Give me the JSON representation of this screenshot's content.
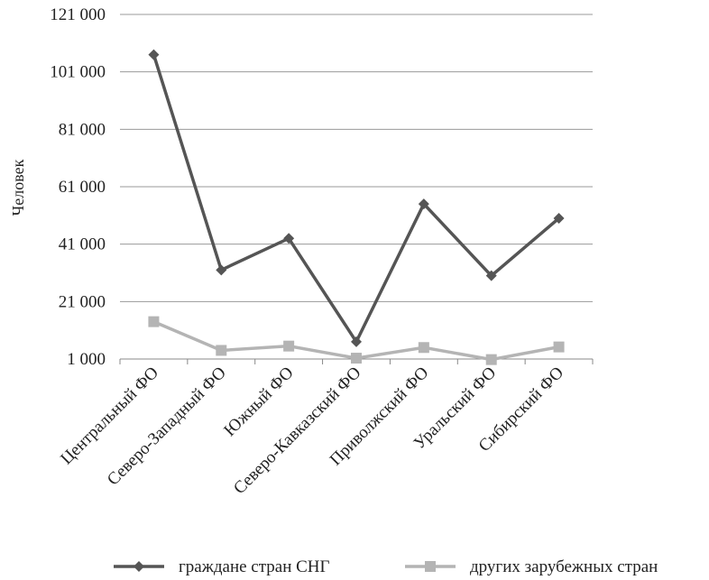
{
  "chart_data": {
    "type": "line",
    "categories": [
      "Центральный ФО",
      "Северо-Западный ФО",
      "Южный ФО",
      "Северо-Кавказский ФО",
      "Приволжский ФО",
      "Уральский ФО",
      "Сибирский ФО"
    ],
    "series": [
      {
        "name": "граждане стран СНГ",
        "values": [
          107000,
          32000,
          43000,
          7000,
          55000,
          30000,
          50000
        ],
        "color": "#555555",
        "marker": "diamond"
      },
      {
        "name": "других зарубежных стран",
        "values": [
          14000,
          4000,
          5500,
          1300,
          5000,
          800,
          5200
        ],
        "color": "#b4b4b4",
        "marker": "square"
      }
    ],
    "ylabel": "Человек",
    "xlabel": "",
    "ylim": [
      1000,
      121000
    ],
    "yticks": [
      1000,
      21000,
      41000,
      61000,
      81000,
      101000,
      121000
    ],
    "ytick_labels": [
      "1 000",
      "21 000",
      "41 000",
      "61 000",
      "81 000",
      "101 000",
      "121 000"
    ],
    "grid": true,
    "legend_position": "bottom"
  }
}
